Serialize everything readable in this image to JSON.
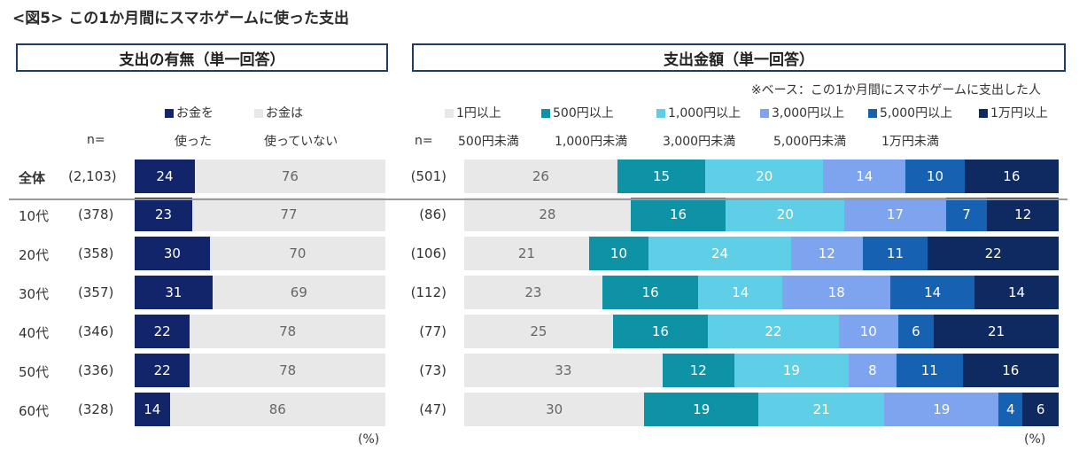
{
  "title": "<図5> この1か月間にスマホゲームに使った支出",
  "left_panel": {
    "header": "支出の有無（単一回答）",
    "legend": [
      {
        "line1": "お金を",
        "line2": "使った",
        "color": "#12256b"
      },
      {
        "line1": "お金は",
        "line2": "使っていない",
        "color": "#e8e8e8"
      }
    ],
    "n_header": "n=",
    "unit": "(%)"
  },
  "right_panel": {
    "header": "支出金額（単一回答）",
    "base_note": "※ベース：この1か月間にスマホゲームに支出した人",
    "legend": [
      {
        "line1": "1円以上",
        "line2": "500円未満",
        "color": "#e8e8e8"
      },
      {
        "line1": "500円以上",
        "line2": "1,000円未満",
        "color": "#0e93a6"
      },
      {
        "line1": "1,000円以上",
        "line2": "3,000円未満",
        "color": "#5fcfe7"
      },
      {
        "line1": "3,000円以上",
        "line2": "5,000円未満",
        "color": "#7ea3ef"
      },
      {
        "line1": "5,000円以上",
        "line2": "1万円未満",
        "color": "#1661b2"
      },
      {
        "line1": "1万円以上",
        "line2": "",
        "color": "#0f2a60"
      }
    ],
    "n_header": "n=",
    "unit": "(%)"
  },
  "chart_data": [
    {
      "type": "bar",
      "stacked": true,
      "orientation": "horizontal",
      "title": "支出の有無（単一回答）",
      "categories": [
        "全体",
        "10代",
        "20代",
        "30代",
        "40代",
        "50代",
        "60代"
      ],
      "n": [
        "(2,103)",
        "(378)",
        "(358)",
        "(357)",
        "(346)",
        "(336)",
        "(328)"
      ],
      "series": [
        {
          "name": "お金を使った",
          "values": [
            24,
            23,
            30,
            31,
            22,
            22,
            14
          ]
        },
        {
          "name": "お金は使っていない",
          "values": [
            76,
            77,
            70,
            69,
            78,
            78,
            86
          ]
        }
      ],
      "xlim": [
        0,
        100
      ],
      "unit": "(%)"
    },
    {
      "type": "bar",
      "stacked": true,
      "orientation": "horizontal",
      "title": "支出金額（単一回答）",
      "categories": [
        "全体",
        "10代",
        "20代",
        "30代",
        "40代",
        "50代",
        "60代"
      ],
      "n": [
        "(501)",
        "(86)",
        "(106)",
        "(112)",
        "(77)",
        "(73)",
        "(47)"
      ],
      "series": [
        {
          "name": "1円以上500円未満",
          "values": [
            26,
            28,
            21,
            23,
            25,
            33,
            30
          ]
        },
        {
          "name": "500円以上1,000円未満",
          "values": [
            15,
            16,
            10,
            16,
            16,
            12,
            19
          ]
        },
        {
          "name": "1,000円以上3,000円未満",
          "values": [
            20,
            20,
            24,
            14,
            22,
            19,
            21
          ]
        },
        {
          "name": "3,000円以上5,000円未満",
          "values": [
            14,
            17,
            12,
            18,
            10,
            8,
            19
          ]
        },
        {
          "name": "5,000円以上1万円未満",
          "values": [
            10,
            7,
            11,
            14,
            6,
            11,
            4
          ]
        },
        {
          "name": "1万円以上",
          "values": [
            16,
            12,
            22,
            14,
            21,
            16,
            6
          ]
        }
      ],
      "xlim": [
        0,
        100
      ],
      "unit": "(%)"
    }
  ]
}
